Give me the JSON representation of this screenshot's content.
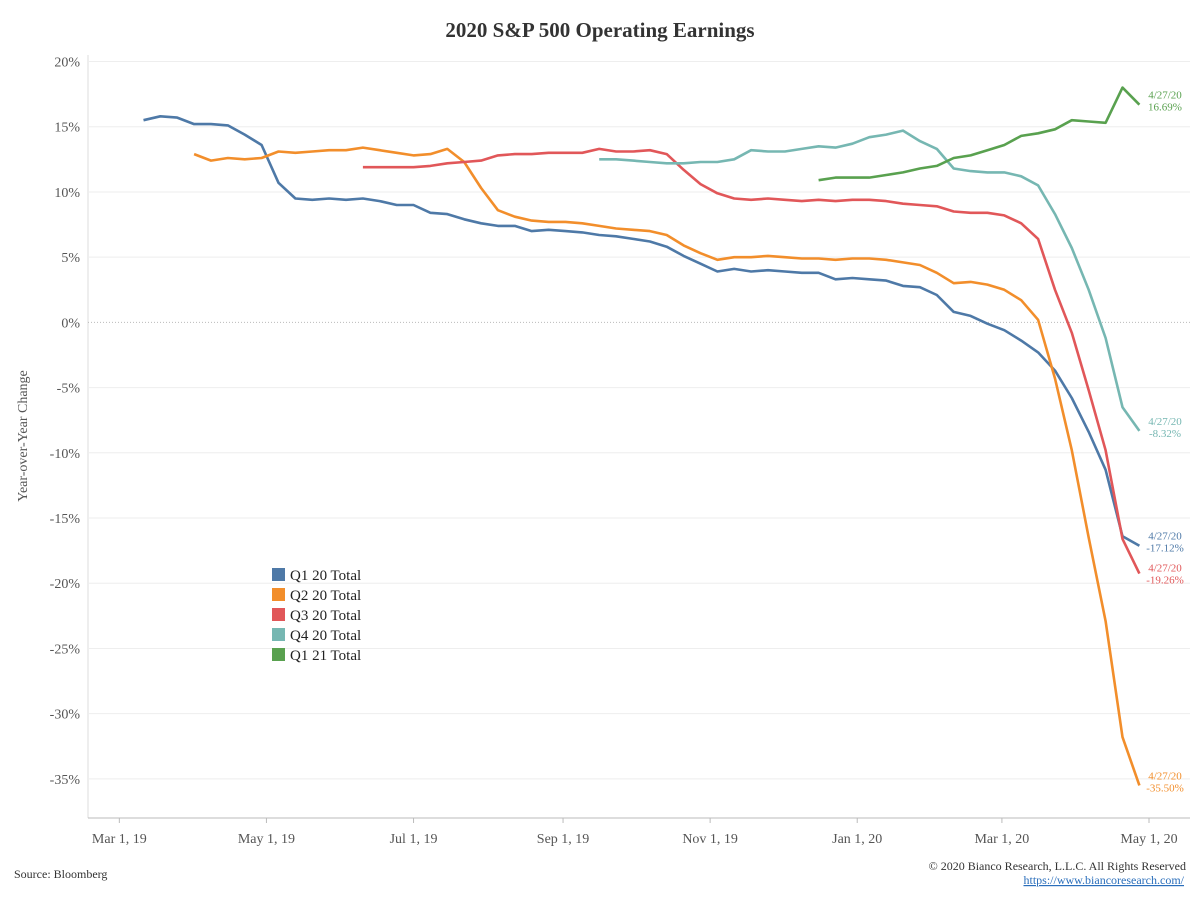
{
  "chart_data": {
    "type": "line",
    "title": "2020 S&P 500 Operating Earnings",
    "y_label": "Year-over-Year Change",
    "source": "Source: Bloomberg",
    "copyright": "© 2020 Bianco Research, L.L.C. All Rights Reserved",
    "link": "https://www.biancoresearch.com/",
    "legend_position": "lower-left",
    "grid": true,
    "x": [
      "2019-03-11",
      "2019-03-18",
      "2019-03-25",
      "2019-04-01",
      "2019-04-08",
      "2019-04-15",
      "2019-04-22",
      "2019-04-29",
      "2019-05-06",
      "2019-05-13",
      "2019-05-20",
      "2019-05-27",
      "2019-06-03",
      "2019-06-10",
      "2019-06-17",
      "2019-06-24",
      "2019-07-01",
      "2019-07-08",
      "2019-07-15",
      "2019-07-22",
      "2019-07-29",
      "2019-08-05",
      "2019-08-12",
      "2019-08-19",
      "2019-08-26",
      "2019-09-02",
      "2019-09-09",
      "2019-09-16",
      "2019-09-23",
      "2019-09-30",
      "2019-10-07",
      "2019-10-14",
      "2019-10-21",
      "2019-10-28",
      "2019-11-04",
      "2019-11-11",
      "2019-11-18",
      "2019-11-25",
      "2019-12-02",
      "2019-12-09",
      "2019-12-16",
      "2019-12-23",
      "2019-12-30",
      "2020-01-06",
      "2020-01-13",
      "2020-01-20",
      "2020-01-27",
      "2020-02-03",
      "2020-02-10",
      "2020-02-17",
      "2020-02-24",
      "2020-03-02",
      "2020-03-09",
      "2020-03-16",
      "2020-03-23",
      "2020-03-30",
      "2020-04-06",
      "2020-04-13",
      "2020-04-20",
      "2020-04-27"
    ],
    "xlim": [
      "2019-02-16",
      "2020-05-18"
    ],
    "xticks": [
      {
        "value": "2019-03-01",
        "label": "Mar 1, 19"
      },
      {
        "value": "2019-05-01",
        "label": "May 1, 19"
      },
      {
        "value": "2019-07-01",
        "label": "Jul 1, 19"
      },
      {
        "value": "2019-09-01",
        "label": "Sep 1, 19"
      },
      {
        "value": "2019-11-01",
        "label": "Nov 1, 19"
      },
      {
        "value": "2020-01-01",
        "label": "Jan 1, 20"
      },
      {
        "value": "2020-03-01",
        "label": "Mar 1, 20"
      },
      {
        "value": "2020-05-01",
        "label": "May 1, 20"
      }
    ],
    "ylim": [
      -38,
      20.5
    ],
    "yticks": [
      {
        "value": 20,
        "label": "20%"
      },
      {
        "value": 15,
        "label": "15%"
      },
      {
        "value": 10,
        "label": "10%"
      },
      {
        "value": 5,
        "label": "5%"
      },
      {
        "value": 0,
        "label": "0%"
      },
      {
        "value": -5,
        "label": "-5%"
      },
      {
        "value": -10,
        "label": "-10%"
      },
      {
        "value": -15,
        "label": "-15%"
      },
      {
        "value": -20,
        "label": "-20%"
      },
      {
        "value": -25,
        "label": "-25%"
      },
      {
        "value": -30,
        "label": "-30%"
      },
      {
        "value": -35,
        "label": "-35%"
      }
    ],
    "series": [
      {
        "name": "Q1 20 Total",
        "color": "#4e79a7",
        "end_label": "4/27/20",
        "end_value_label": "-17.12%",
        "values": [
          15.5,
          15.8,
          15.7,
          15.2,
          15.2,
          15.1,
          14.4,
          13.6,
          10.7,
          9.5,
          9.4,
          9.5,
          9.4,
          9.5,
          9.3,
          9.0,
          9.0,
          8.4,
          8.3,
          7.9,
          7.6,
          7.4,
          7.4,
          7.0,
          7.1,
          7.0,
          6.9,
          6.7,
          6.6,
          6.4,
          6.2,
          5.8,
          5.1,
          4.5,
          3.9,
          4.1,
          3.9,
          4.0,
          3.9,
          3.8,
          3.8,
          3.3,
          3.4,
          3.3,
          3.2,
          2.8,
          2.7,
          2.1,
          0.8,
          0.5,
          -0.1,
          -0.6,
          -1.4,
          -2.3,
          -3.7,
          -5.8,
          -8.4,
          -11.3,
          -16.4,
          -17.12
        ]
      },
      {
        "name": "Q2 20 Total",
        "color": "#f28e2b",
        "end_label": "4/27/20",
        "end_value_label": "-35.50%",
        "values": [
          null,
          null,
          null,
          12.9,
          12.4,
          12.6,
          12.5,
          12.6,
          13.1,
          13.0,
          13.1,
          13.2,
          13.2,
          13.4,
          13.2,
          13.0,
          12.8,
          12.9,
          13.3,
          12.3,
          10.3,
          8.6,
          8.1,
          7.8,
          7.7,
          7.7,
          7.6,
          7.4,
          7.2,
          7.1,
          7.0,
          6.7,
          5.9,
          5.3,
          4.8,
          5.0,
          5.0,
          5.1,
          5.0,
          4.9,
          4.9,
          4.8,
          4.9,
          4.9,
          4.8,
          4.6,
          4.4,
          3.8,
          3.0,
          3.1,
          2.9,
          2.5,
          1.7,
          0.2,
          -4.3,
          -9.8,
          -16.5,
          -22.9,
          -31.8,
          -35.5
        ]
      },
      {
        "name": "Q3 20 Total",
        "color": "#e15759",
        "end_label": "4/27/20",
        "end_value_label": "-19.26%",
        "values": [
          null,
          null,
          null,
          null,
          null,
          null,
          null,
          null,
          null,
          null,
          null,
          null,
          null,
          11.9,
          11.9,
          11.9,
          11.9,
          12.0,
          12.2,
          12.3,
          12.4,
          12.8,
          12.9,
          12.9,
          13.0,
          13.0,
          13.0,
          13.3,
          13.1,
          13.1,
          13.2,
          12.9,
          11.7,
          10.6,
          9.9,
          9.5,
          9.4,
          9.5,
          9.4,
          9.3,
          9.4,
          9.3,
          9.4,
          9.4,
          9.3,
          9.1,
          9.0,
          8.9,
          8.5,
          8.4,
          8.4,
          8.2,
          7.6,
          6.4,
          2.5,
          -0.8,
          -5.2,
          -9.8,
          -16.6,
          -19.26
        ]
      },
      {
        "name": "Q4 20 Total",
        "color": "#76b7b2",
        "end_label": "4/27/20",
        "end_value_label": "-8.32%",
        "values": [
          null,
          null,
          null,
          null,
          null,
          null,
          null,
          null,
          null,
          null,
          null,
          null,
          null,
          null,
          null,
          null,
          null,
          null,
          null,
          null,
          null,
          null,
          null,
          null,
          null,
          null,
          null,
          12.5,
          12.5,
          12.4,
          12.3,
          12.2,
          12.2,
          12.3,
          12.3,
          12.5,
          13.2,
          13.1,
          13.1,
          13.3,
          13.5,
          13.4,
          13.7,
          14.2,
          14.4,
          14.7,
          13.9,
          13.3,
          11.8,
          11.6,
          11.5,
          11.5,
          11.2,
          10.5,
          8.3,
          5.7,
          2.5,
          -1.2,
          -6.5,
          -8.32
        ]
      },
      {
        "name": "Q1 21 Total",
        "color": "#59a14f",
        "end_label": "4/27/20",
        "end_value_label": "16.69%",
        "values": [
          null,
          null,
          null,
          null,
          null,
          null,
          null,
          null,
          null,
          null,
          null,
          null,
          null,
          null,
          null,
          null,
          null,
          null,
          null,
          null,
          null,
          null,
          null,
          null,
          null,
          null,
          null,
          null,
          null,
          null,
          null,
          null,
          null,
          null,
          null,
          null,
          null,
          null,
          null,
          null,
          10.9,
          11.1,
          11.1,
          11.1,
          11.3,
          11.5,
          11.8,
          12.0,
          12.6,
          12.8,
          13.2,
          13.6,
          14.3,
          14.5,
          14.8,
          15.5,
          15.4,
          15.3,
          18.0,
          16.69
        ]
      }
    ]
  }
}
